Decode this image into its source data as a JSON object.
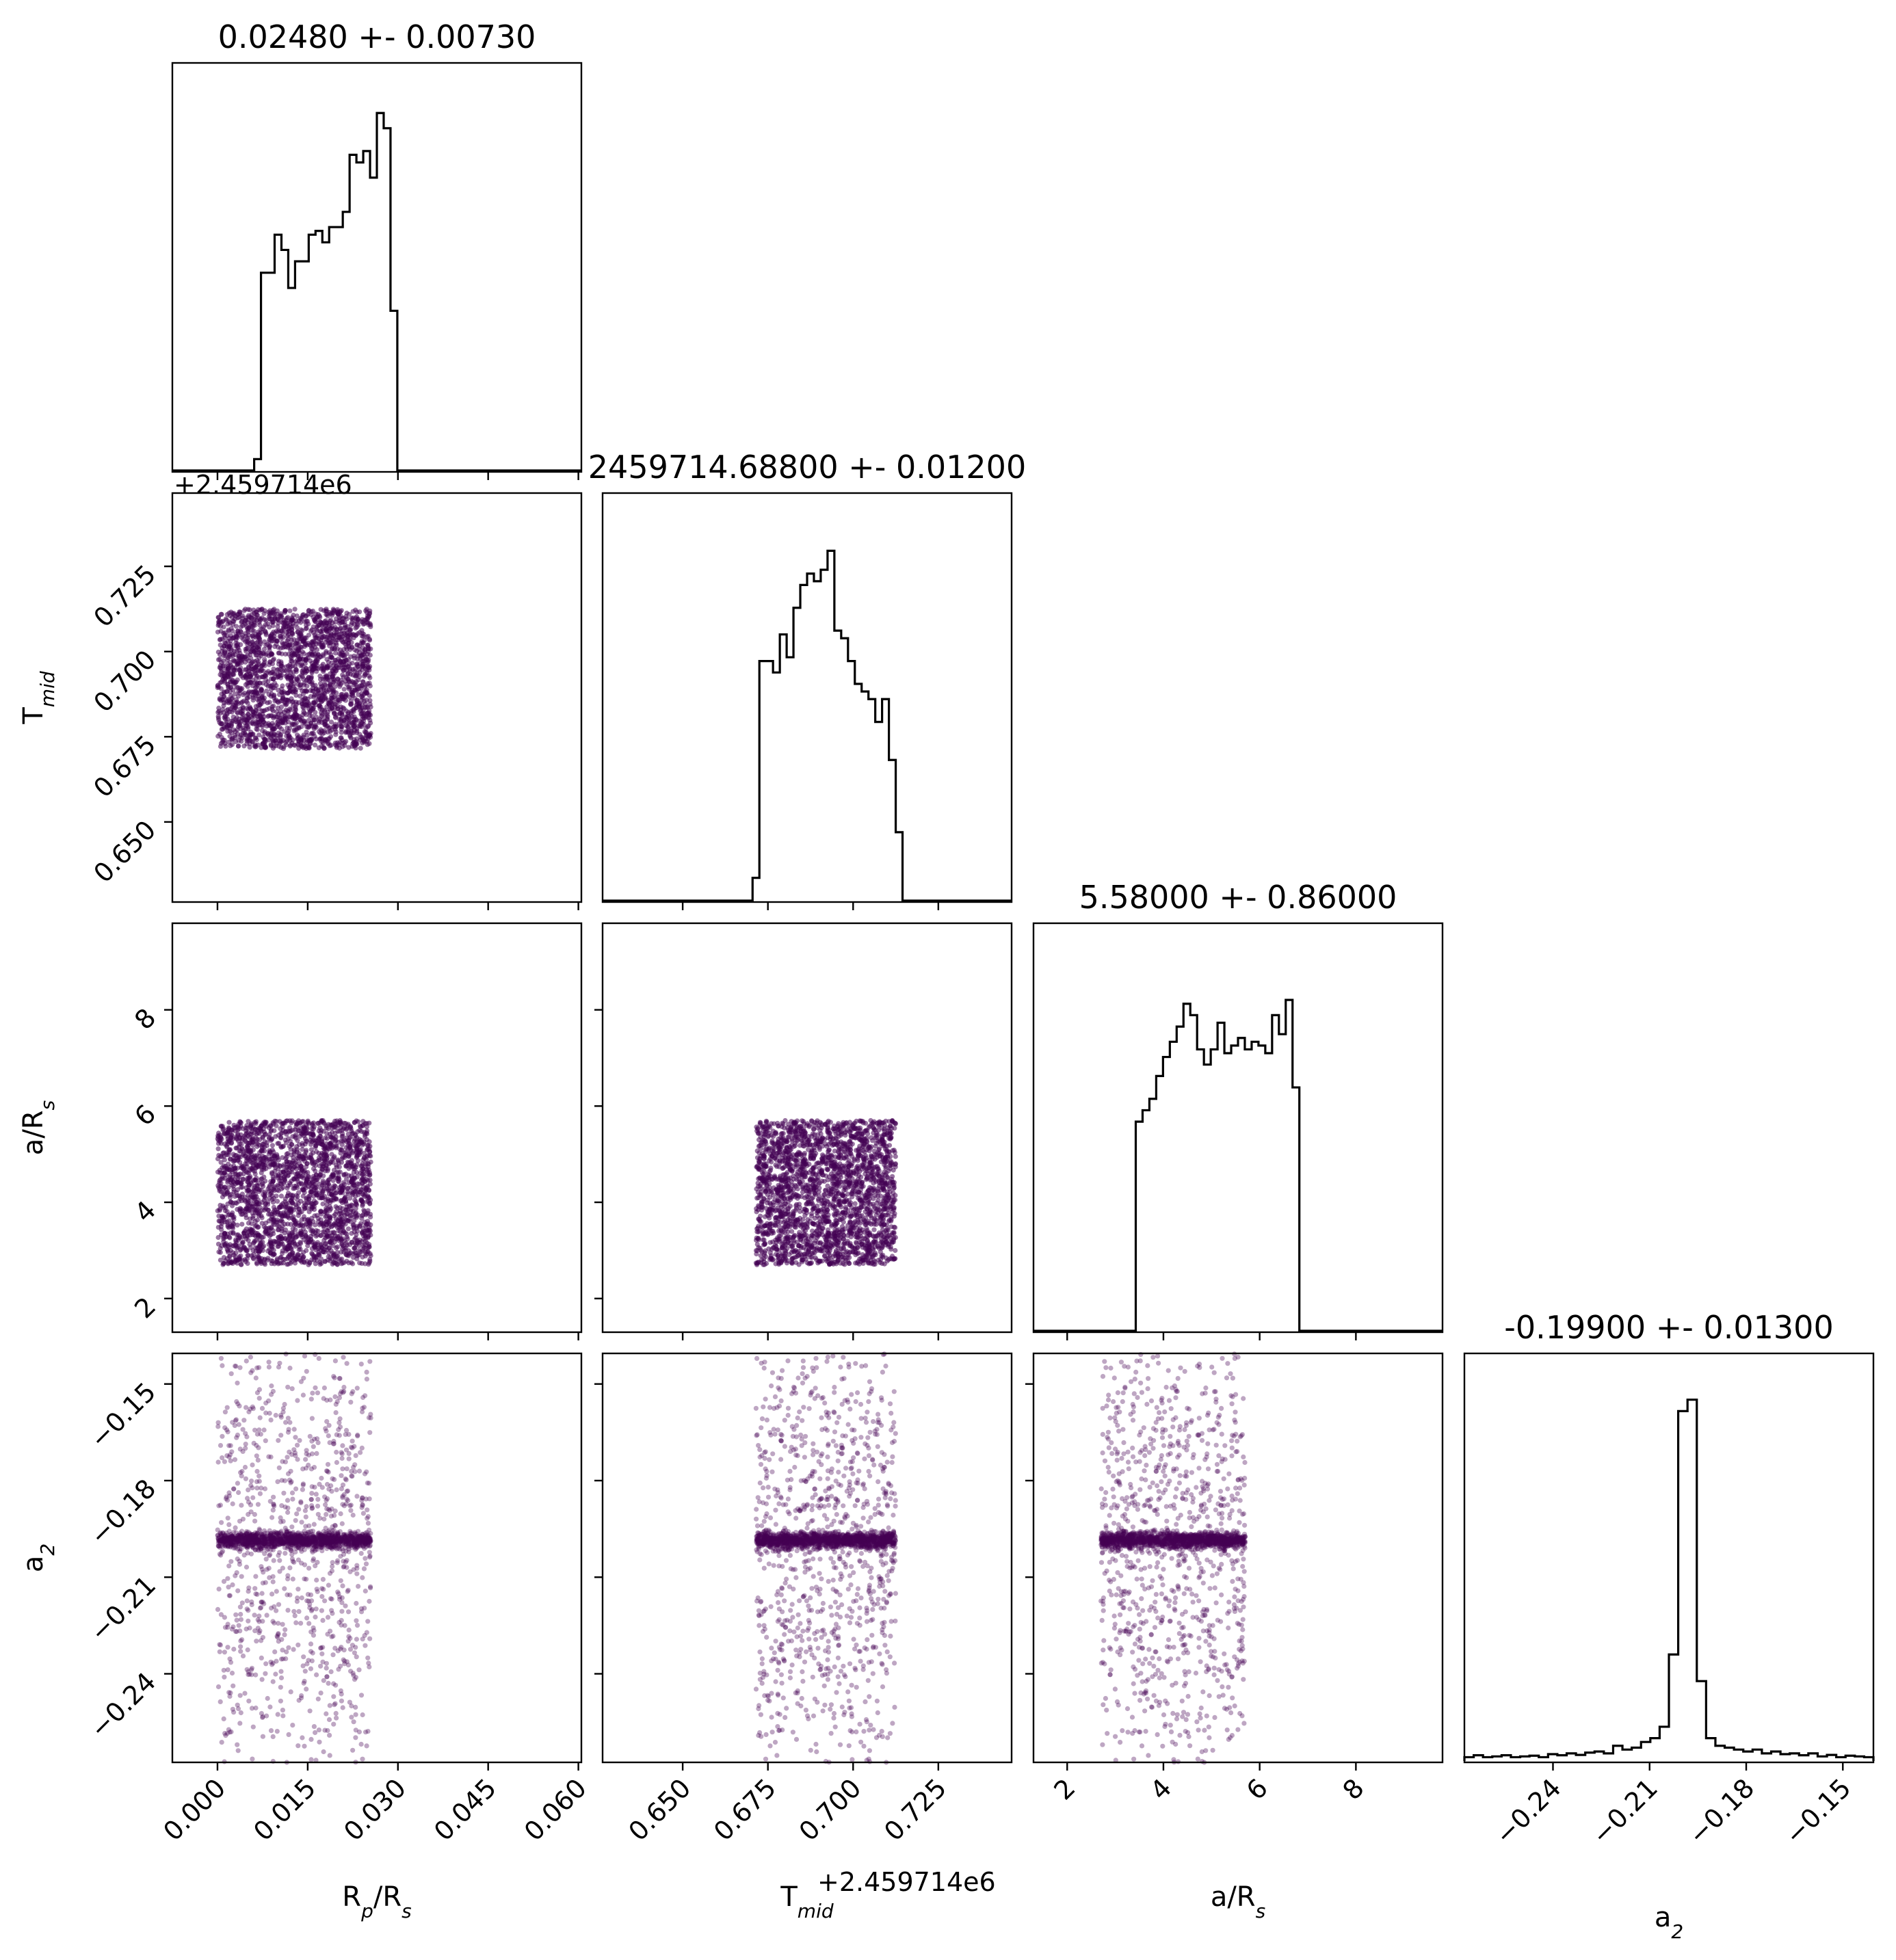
{
  "chart_data": {
    "type": "corner",
    "colors": {
      "points": "#440154",
      "highlight": "#21918c",
      "line": "#000000"
    },
    "parameters": [
      {
        "id": "rp",
        "label": "R",
        "label_sub": "p",
        "label_rest": "/R",
        "label_sub2": "s",
        "range": [
          -0.0075,
          0.0605
        ],
        "ticks": [
          0.0,
          0.015,
          0.03,
          0.045,
          0.06
        ],
        "tick_labels": [
          "0.000",
          "0.015",
          "0.030",
          "0.045",
          "0.060"
        ],
        "sample_range": [
          0.0,
          0.0255
        ],
        "title": "0.02480 +- 0.00730",
        "hist": [
          0,
          0,
          0,
          0,
          0,
          0,
          0,
          0,
          0,
          0,
          0,
          0,
          0.03,
          0.52,
          0.52,
          0.62,
          0.58,
          0.48,
          0.55,
          0.55,
          0.62,
          0.63,
          0.6,
          0.64,
          0.64,
          0.68,
          0.83,
          0.81,
          0.84,
          0.77,
          0.94,
          0.9,
          0.42,
          0,
          0,
          0,
          0,
          0,
          0,
          0,
          0,
          0,
          0,
          0,
          0,
          0,
          0,
          0,
          0,
          0,
          0,
          0,
          0,
          0,
          0,
          0,
          0,
          0,
          0,
          0
        ],
        "offset_label": ""
      },
      {
        "id": "tmid",
        "label": "T",
        "label_sub": "mid",
        "label_rest": "",
        "label_sub2": "",
        "range": [
          0.6265,
          0.7465
        ],
        "ticks": [
          0.65,
          0.675,
          0.7,
          0.725
        ],
        "tick_labels": [
          "0.650",
          "0.675",
          "0.700",
          "0.725"
        ],
        "sample_range": [
          0.6715,
          0.7125
        ],
        "title": "2459714.68800 +- 0.01200",
        "offset_label": "+2.459714e6",
        "hist": [
          0,
          0,
          0,
          0,
          0,
          0,
          0,
          0,
          0,
          0,
          0,
          0,
          0,
          0,
          0,
          0,
          0,
          0,
          0,
          0,
          0,
          0,
          0.06,
          0.63,
          0.63,
          0.6,
          0.7,
          0.64,
          0.77,
          0.83,
          0.86,
          0.84,
          0.87,
          0.92,
          0.71,
          0.69,
          0.63,
          0.57,
          0.55,
          0.53,
          0.47,
          0.53,
          0.37,
          0.18,
          0,
          0,
          0,
          0,
          0,
          0,
          0,
          0,
          0,
          0,
          0,
          0,
          0,
          0,
          0,
          0
        ]
      },
      {
        "id": "ars",
        "label": "a/R",
        "label_sub": "s",
        "label_rest": "",
        "label_sub2": "",
        "range": [
          1.3,
          9.8
        ],
        "ticks": [
          2,
          4,
          6,
          8
        ],
        "tick_labels": [
          "2",
          "4",
          "6",
          "8"
        ],
        "sample_range": [
          2.7,
          5.7
        ],
        "title": "5.58000 +- 0.86000",
        "offset_label": "",
        "hist": [
          0,
          0,
          0,
          0,
          0,
          0,
          0,
          0,
          0,
          0,
          0,
          0,
          0,
          0,
          0,
          0.55,
          0.58,
          0.61,
          0.67,
          0.72,
          0.76,
          0.8,
          0.86,
          0.83,
          0.74,
          0.7,
          0.74,
          0.81,
          0.73,
          0.75,
          0.77,
          0.74,
          0.76,
          0.75,
          0.73,
          0.83,
          0.78,
          0.87,
          0.64,
          0,
          0,
          0,
          0,
          0,
          0,
          0,
          0,
          0,
          0,
          0,
          0,
          0,
          0,
          0,
          0,
          0,
          0,
          0,
          0,
          0
        ]
      },
      {
        "id": "a2",
        "label": "a",
        "label_sub": "2",
        "label_rest": "",
        "label_sub2": "",
        "range": [
          -0.2675,
          -0.1405
        ],
        "ticks": [
          -0.24,
          -0.21,
          -0.18,
          -0.15
        ],
        "tick_labels": [
          "−0.24",
          "−0.21",
          "−0.18",
          "−0.15"
        ],
        "sample_range": [
          -0.2675,
          -0.1405
        ],
        "title": "-0.19900 +- 0.01300",
        "offset_label": "",
        "hist": [
          0.01,
          0.015,
          0.01,
          0.012,
          0.015,
          0.01,
          0.012,
          0.014,
          0.01,
          0.018,
          0.015,
          0.02,
          0.016,
          0.022,
          0.025,
          0.02,
          0.04,
          0.03,
          0.035,
          0.05,
          0.06,
          0.09,
          0.28,
          0.92,
          0.95,
          0.21,
          0.06,
          0.04,
          0.035,
          0.03,
          0.025,
          0.03,
          0.02,
          0.025,
          0.018,
          0.02,
          0.015,
          0.02,
          0.012,
          0.016,
          0.01,
          0.014,
          0.012,
          0.01
        ]
      }
    ]
  }
}
